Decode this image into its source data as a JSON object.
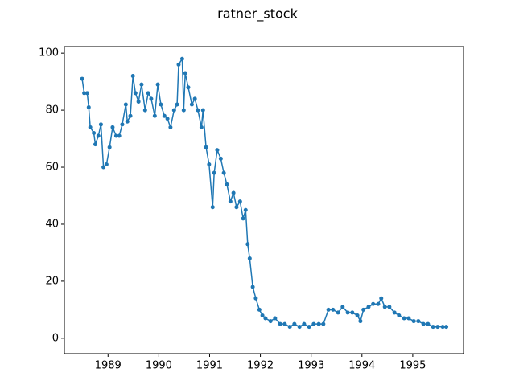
{
  "chart_data": {
    "type": "line",
    "title": "ratner_stock",
    "x": [
      1988.49,
      1988.53,
      1988.59,
      1988.62,
      1988.65,
      1988.72,
      1988.75,
      1988.81,
      1988.86,
      1988.91,
      1988.97,
      1989.03,
      1989.09,
      1989.16,
      1989.22,
      1989.28,
      1989.35,
      1989.38,
      1989.44,
      1989.49,
      1989.54,
      1989.6,
      1989.66,
      1989.73,
      1989.79,
      1989.85,
      1989.92,
      1989.98,
      1990.04,
      1990.11,
      1990.17,
      1990.23,
      1990.3,
      1990.36,
      1990.39,
      1990.46,
      1990.49,
      1990.52,
      1990.58,
      1990.65,
      1990.71,
      1990.77,
      1990.84,
      1990.87,
      1990.93,
      1990.99,
      1991.06,
      1991.09,
      1991.15,
      1991.22,
      1991.28,
      1991.34,
      1991.41,
      1991.47,
      1991.53,
      1991.6,
      1991.66,
      1991.71,
      1991.75,
      1991.79,
      1991.85,
      1991.91,
      1991.98,
      1992.04,
      1992.1,
      1992.2,
      1992.29,
      1992.39,
      1992.48,
      1992.58,
      1992.67,
      1992.77,
      1992.86,
      1992.96,
      1993.05,
      1993.15,
      1993.24,
      1993.34,
      1993.43,
      1993.53,
      1993.62,
      1993.72,
      1993.81,
      1993.91,
      1993.97,
      1994.03,
      1994.13,
      1994.22,
      1994.32,
      1994.38,
      1994.45,
      1994.54,
      1994.64,
      1994.73,
      1994.83,
      1994.92,
      1995.02,
      1995.11,
      1995.21,
      1995.3,
      1995.4,
      1995.49,
      1995.59,
      1995.66
    ],
    "series": [
      {
        "name": "ratner_stock",
        "color": "#1f77b4",
        "values": [
          91,
          86,
          86,
          81,
          74,
          72,
          68,
          71,
          75,
          60,
          61,
          67,
          74,
          71,
          71,
          75,
          82,
          76,
          78,
          92,
          86,
          83,
          89,
          80,
          86,
          84,
          78,
          89,
          82,
          78,
          77,
          74,
          80,
          82,
          96,
          98,
          80,
          93,
          88,
          82,
          84,
          80,
          74,
          80,
          67,
          61,
          46,
          58,
          66,
          63,
          58,
          54,
          48,
          51,
          46,
          48,
          42,
          45,
          33,
          28,
          18,
          14,
          10,
          8,
          7,
          6,
          7,
          5,
          5,
          4,
          5,
          4,
          5,
          4,
          5,
          5,
          5,
          10,
          10,
          9,
          11,
          9,
          9,
          8,
          6,
          10,
          11,
          12,
          12,
          14,
          11,
          11,
          9,
          8,
          7,
          7,
          6,
          6,
          5,
          5,
          4,
          4,
          4,
          4
        ]
      }
    ],
    "xlim": [
      1988.14,
      1996.0
    ],
    "xticks": [
      1989,
      1990,
      1991,
      1992,
      1993,
      1994,
      1995
    ],
    "ylim": [
      -5.4,
      102.3
    ],
    "yticks": [
      0,
      20,
      40,
      60,
      80,
      100
    ],
    "grid": false
  }
}
